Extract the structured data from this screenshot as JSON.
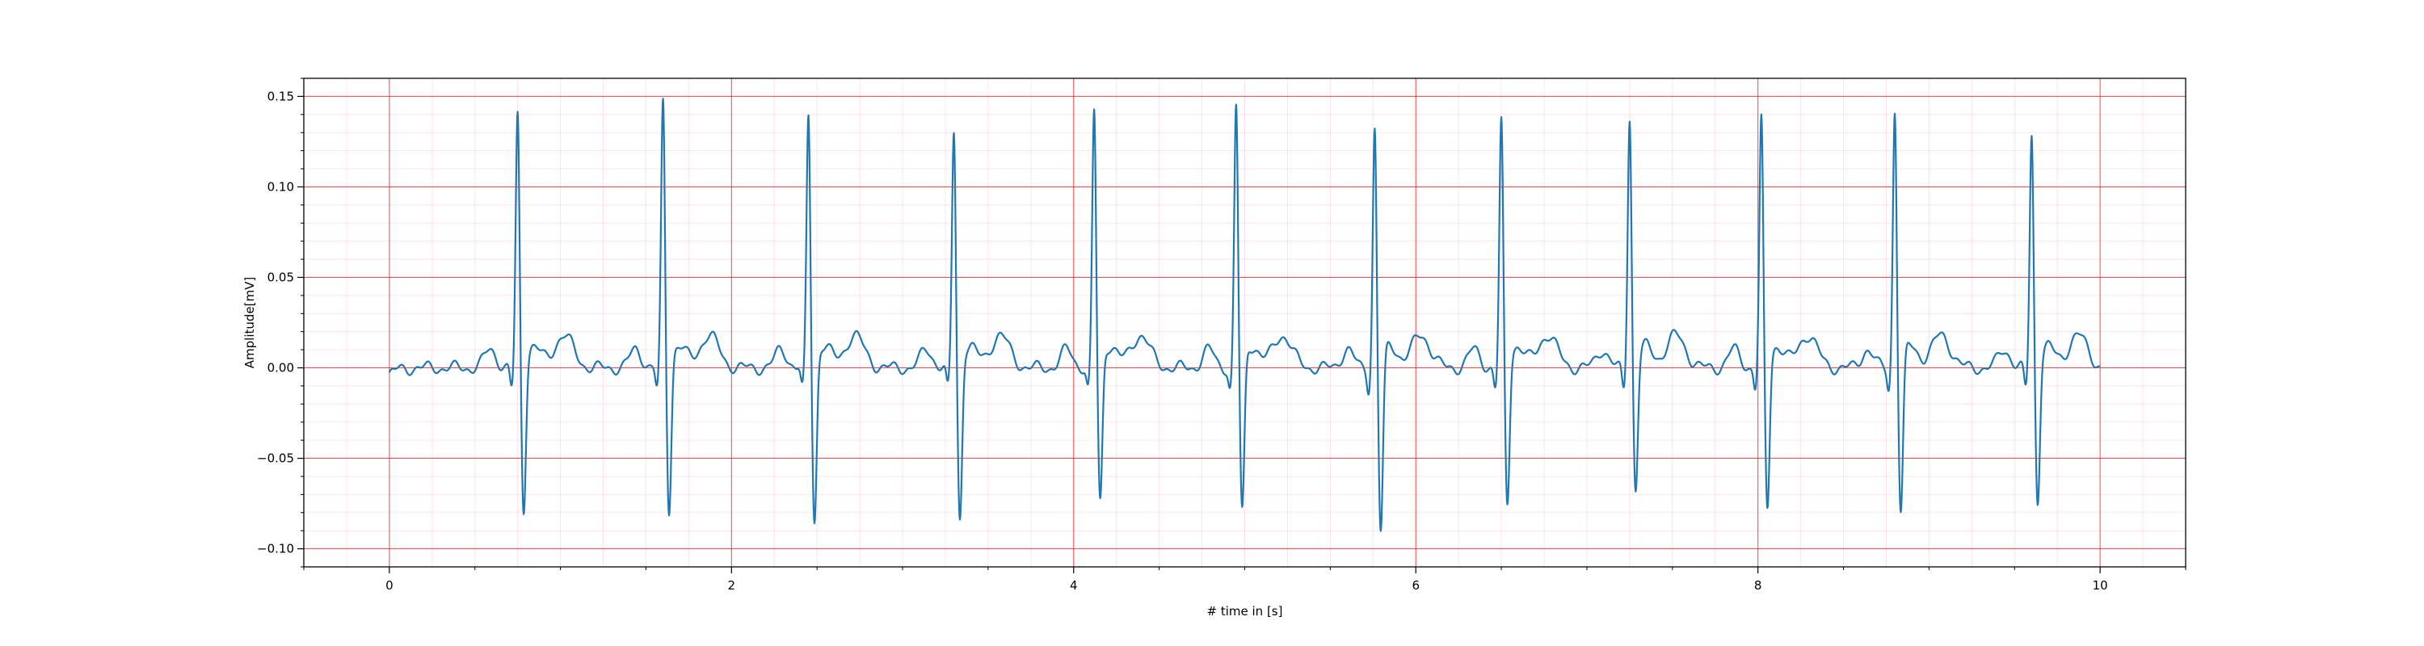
{
  "chart_data": {
    "type": "line",
    "xlabel": "# time in [s]",
    "ylabel": "Amplitude[mV]",
    "xlim": [
      -0.5,
      10.5
    ],
    "ylim": [
      -0.11,
      0.16
    ],
    "x_ticks": [
      0,
      2,
      4,
      6,
      8,
      10
    ],
    "x_tick_labels": [
      "0",
      "2",
      "4",
      "6",
      "8",
      "10"
    ],
    "y_ticks": [
      -0.1,
      -0.05,
      0.0,
      0.05,
      0.1,
      0.15
    ],
    "y_tick_labels": [
      "−0.10",
      "−0.05",
      "0.00",
      "0.05",
      "0.10",
      "0.15"
    ],
    "grid": true,
    "grid_major_color": "#ff0000",
    "grid_minor_color": "#ffc0cb",
    "line_color": "#1f77b4",
    "series": [
      {
        "x_start": 0.0,
        "x_end": 10.0,
        "baseline_start": [
          0.0,
          -0.004
        ],
        "beats": [
          {
            "t": 0.75,
            "r": 0.14,
            "s": -0.085
          },
          {
            "t": 1.6,
            "r": 0.147,
            "s": -0.085
          },
          {
            "t": 2.45,
            "r": 0.14,
            "s": -0.091
          },
          {
            "t": 3.3,
            "r": 0.131,
            "s": -0.09
          },
          {
            "t": 4.12,
            "r": 0.142,
            "s": -0.08
          },
          {
            "t": 4.95,
            "r": 0.145,
            "s": -0.086
          },
          {
            "t": 5.76,
            "r": 0.133,
            "s": -0.097
          },
          {
            "t": 6.5,
            "r": 0.136,
            "s": -0.082
          },
          {
            "t": 7.25,
            "r": 0.139,
            "s": -0.074
          },
          {
            "t": 8.02,
            "r": 0.137,
            "s": -0.084
          },
          {
            "t": 8.8,
            "r": 0.143,
            "s": -0.086
          },
          {
            "t": 9.6,
            "r": 0.129,
            "s": -0.08
          }
        ],
        "t_wave_amplitude": 0.018,
        "p_wave_amplitude": 0.01
      }
    ]
  }
}
